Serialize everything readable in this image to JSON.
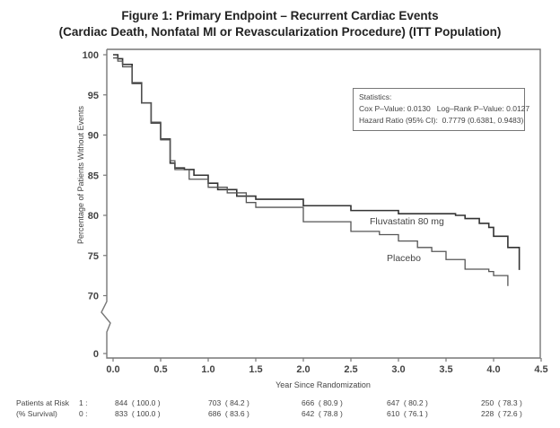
{
  "chart_data": {
    "type": "line",
    "title": "Figure 1: Primary Endpoint – Recurrent Cardiac Events",
    "subtitle": "(Cardiac Death, Nonfatal MI or Revascularization Procedure) (ITT Population)",
    "xlabel": "Year Since Randomization",
    "ylabel": "Percentage of Patients Without Events",
    "xlim": [
      0,
      4.5
    ],
    "ylim": [
      0,
      100
    ],
    "y_axis_break": [
      0,
      70
    ],
    "xticks": [
      "0.0",
      "0.5",
      "1.0",
      "1.5",
      "2.0",
      "2.5",
      "3.0",
      "3.5",
      "4.0",
      "4.5"
    ],
    "yticks": [
      "100",
      "95",
      "90",
      "85",
      "80",
      "75",
      "70",
      "0"
    ],
    "ytick_values": [
      100,
      95,
      90,
      85,
      80,
      75,
      70,
      0
    ],
    "grid": false,
    "series": [
      {
        "name": "Fluvastatin 80 mg",
        "step": true,
        "x": [
          0,
          0.05,
          0.1,
          0.2,
          0.3,
          0.4,
          0.5,
          0.6,
          0.65,
          0.75,
          0.85,
          1.0,
          1.1,
          1.3,
          1.5,
          2.0,
          2.5,
          3.0,
          3.5,
          3.6,
          3.7,
          3.85,
          3.95,
          4.0,
          4.15,
          4.27,
          4.27
        ],
        "y": [
          100,
          99.5,
          98.8,
          96.5,
          94,
          91.5,
          89.5,
          86.5,
          85.9,
          85.7,
          85,
          84,
          83.2,
          82.4,
          82,
          81.2,
          80.6,
          80.2,
          80.2,
          80,
          79.6,
          79,
          78.5,
          77.4,
          76,
          76,
          73.2
        ]
      },
      {
        "name": "Placebo",
        "step": true,
        "x": [
          0,
          0.05,
          0.1,
          0.2,
          0.3,
          0.4,
          0.5,
          0.6,
          0.65,
          0.8,
          1.0,
          1.2,
          1.4,
          1.5,
          2.0,
          2.5,
          2.8,
          3.0,
          3.2,
          3.35,
          3.5,
          3.7,
          3.95,
          4.0,
          4.15,
          4.15
        ],
        "y": [
          99.6,
          99.2,
          98.5,
          96.4,
          94,
          91.6,
          89.4,
          86.8,
          85.7,
          84.5,
          83.5,
          82.8,
          81.6,
          81,
          79.2,
          78,
          77.6,
          76.8,
          76,
          75.5,
          74.5,
          73.3,
          73,
          72.5,
          72.5,
          71.2
        ]
      }
    ],
    "annotations": [
      "Fluvastatin 80 mg",
      "Placebo"
    ],
    "legend": "none (inline labels)"
  },
  "statistics": {
    "heading": "Statistics:",
    "line1": "Cox P–Value: 0.0130   Log–Rank P–Value: 0.0127",
    "line2": "Hazard Ratio (95% CI):  0.7779 (0.6381, 0.9483)"
  },
  "risk_table": {
    "label1": "Patients at Risk",
    "label2": "(% Survival)",
    "rows": [
      {
        "group": "1 :",
        "cells": [
          "844  ( 100.0 )",
          "703  ( 84.2 )",
          "666  ( 80.9 )",
          "647  ( 80.2 )",
          "250  ( 78.3 )"
        ]
      },
      {
        "group": "0 :",
        "cells": [
          "833  ( 100.0 )",
          "686  ( 83.6 )",
          "642  ( 78.8 )",
          "610  ( 76.1 )",
          "228  ( 72.6 )"
        ]
      }
    ]
  }
}
